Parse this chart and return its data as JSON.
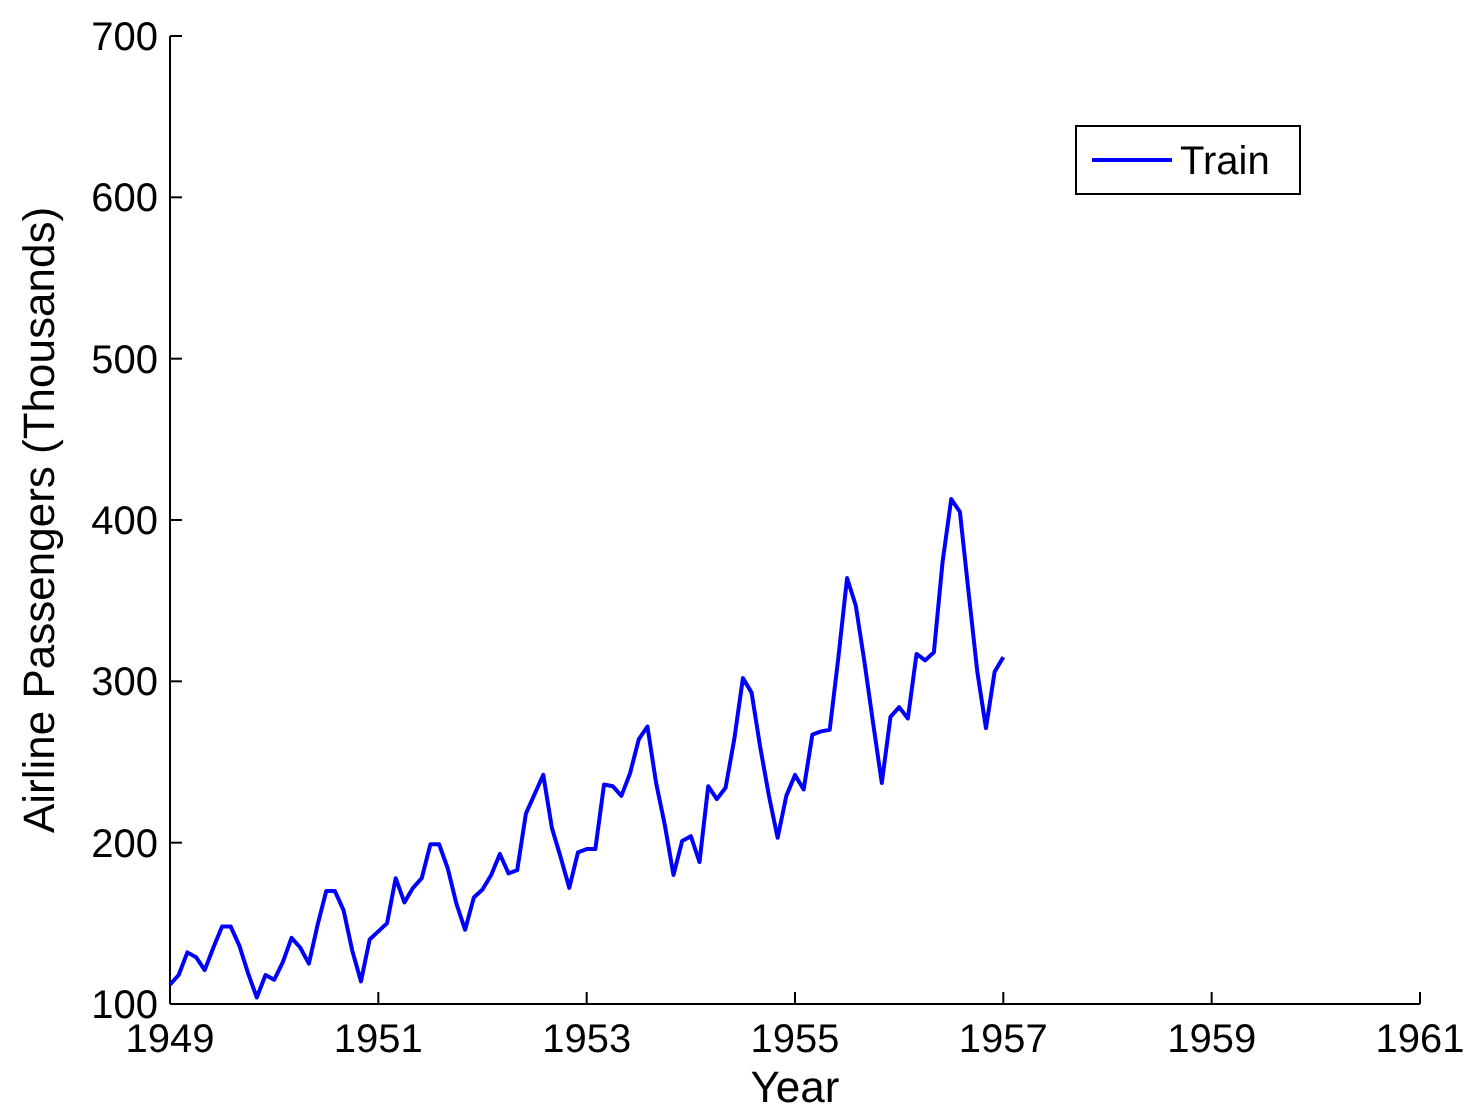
{
  "chart_data": {
    "type": "line",
    "xlabel": "Year",
    "ylabel": "Airline Passengers (Thousands)",
    "xlim": [
      1949,
      1961
    ],
    "xticks": [
      1949,
      1951,
      1953,
      1955,
      1957,
      1959,
      1961
    ],
    "ylim": [
      100,
      700
    ],
    "yticks": [
      100,
      200,
      300,
      400,
      500,
      600,
      700
    ],
    "legend": "top right",
    "grid": false,
    "series": [
      {
        "name": "Train",
        "color": "#0000ff",
        "line_style": "solid",
        "x": [
          1949,
          1949.0833,
          1949.1667,
          1949.25,
          1949.3333,
          1949.4167,
          1949.5,
          1949.5833,
          1949.6667,
          1949.75,
          1949.8333,
          1949.9167,
          1950,
          1950.0833,
          1950.1667,
          1950.25,
          1950.3333,
          1950.4167,
          1950.5,
          1950.5833,
          1950.6667,
          1950.75,
          1950.8333,
          1950.9167,
          1951,
          1951.0833,
          1951.1667,
          1951.25,
          1951.3333,
          1951.4167,
          1951.5,
          1951.5833,
          1951.6667,
          1951.75,
          1951.8333,
          1951.9167,
          1952,
          1952.0833,
          1952.1667,
          1952.25,
          1952.3333,
          1952.4167,
          1952.5,
          1952.5833,
          1952.6667,
          1952.75,
          1952.8333,
          1952.9167,
          1953,
          1953.0833,
          1953.1667,
          1953.25,
          1953.3333,
          1953.4167,
          1953.5,
          1953.5833,
          1953.6667,
          1953.75,
          1953.8333,
          1953.9167,
          1954,
          1954.0833,
          1954.1667,
          1954.25,
          1954.3333,
          1954.4167,
          1954.5,
          1954.5833,
          1954.6667,
          1954.75,
          1954.8333,
          1954.9167,
          1955,
          1955.0833,
          1955.1667,
          1955.25,
          1955.3333,
          1955.4167,
          1955.5,
          1955.5833,
          1955.6667,
          1955.75,
          1955.8333,
          1955.9167,
          1956,
          1956.0833,
          1956.1667,
          1956.25,
          1956.3333,
          1956.4167,
          1956.5,
          1956.5833,
          1956.6667,
          1956.75,
          1956.8333,
          1956.9167,
          1957
        ],
        "values": [
          112,
          118,
          132,
          129,
          121,
          135,
          148,
          148,
          136,
          119,
          104,
          118,
          115,
          126,
          141,
          135,
          125,
          149,
          170,
          170,
          158,
          133,
          114,
          140,
          145,
          150,
          178,
          163,
          172,
          178,
          199,
          199,
          184,
          162,
          146,
          166,
          171,
          180,
          193,
          181,
          183,
          218,
          230,
          242,
          209,
          191,
          172,
          194,
          196,
          196,
          236,
          235,
          229,
          243,
          264,
          272,
          237,
          211,
          180,
          201,
          204,
          188,
          235,
          227,
          234,
          264,
          302,
          293,
          259,
          229,
          203,
          229,
          242,
          233,
          267,
          269,
          270,
          315,
          364,
          347,
          312,
          274,
          237,
          278,
          284,
          277,
          317,
          313,
          318,
          374,
          413,
          405,
          355,
          306,
          271,
          306,
          315
        ]
      }
    ]
  }
}
